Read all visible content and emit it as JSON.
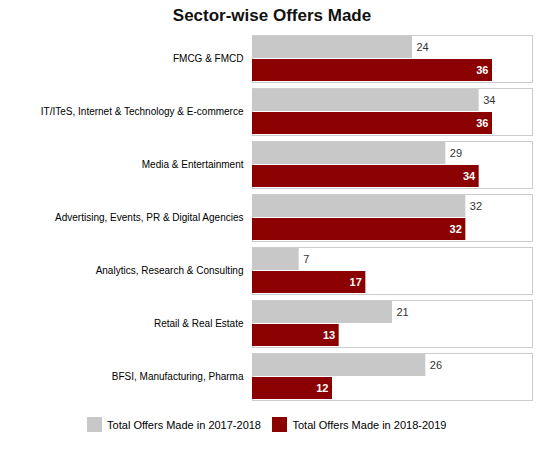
{
  "chart_data": {
    "type": "bar",
    "orientation": "horizontal",
    "title": "Sector-wise Offers Made",
    "categories": [
      "BFSI, Manufacturing, Pharma",
      "Retail & Real Estate",
      "Analytics, Research & Consulting",
      "Advertising, Events, PR & Digital Agencies",
      "Media & Entertainment",
      "IT/ITeS, Internet & Technology & E-commerce",
      "FMCG & FMCD"
    ],
    "series": [
      {
        "name": "Total Offers Made in 2017-2018",
        "color": "#c8c8c8",
        "values": [
          26,
          21,
          7,
          32,
          29,
          34,
          24
        ]
      },
      {
        "name": "Total Offers Made in 2018-2019",
        "color": "#8b0000",
        "values": [
          12,
          13,
          17,
          32,
          34,
          36,
          36
        ]
      }
    ],
    "xlim": [
      0,
      42
    ],
    "xticks": [],
    "tick_labels": "y",
    "data_labels": true,
    "legend": "bottom",
    "grid": false
  }
}
